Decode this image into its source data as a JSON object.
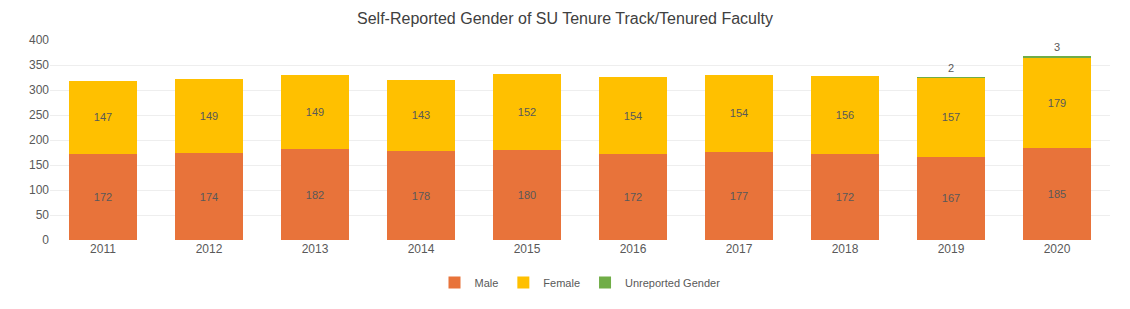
{
  "chart_data": {
    "type": "bar",
    "title": "Self-Reported Gender of SU Tenure Track/Tenured Faculty",
    "categories": [
      "2011",
      "2012",
      "2013",
      "2014",
      "2015",
      "2016",
      "2017",
      "2018",
      "2019",
      "2020"
    ],
    "series": [
      {
        "name": "Male",
        "color": "#E8733A",
        "values": [
          172,
          174,
          182,
          178,
          180,
          172,
          177,
          172,
          167,
          185
        ]
      },
      {
        "name": "Female",
        "color": "#FFC000",
        "values": [
          147,
          149,
          149,
          143,
          152,
          154,
          154,
          156,
          157,
          179
        ]
      },
      {
        "name": "Unreported Gender",
        "color": "#70AD47",
        "values": [
          0,
          0,
          0,
          0,
          0,
          0,
          0,
          0,
          2,
          3
        ]
      }
    ],
    "stacked": true,
    "data_labels": true,
    "ylim": [
      0,
      400
    ],
    "yticks": [
      0,
      50,
      100,
      150,
      200,
      250,
      300,
      350,
      400
    ],
    "grid": true,
    "legend": "bottom"
  }
}
